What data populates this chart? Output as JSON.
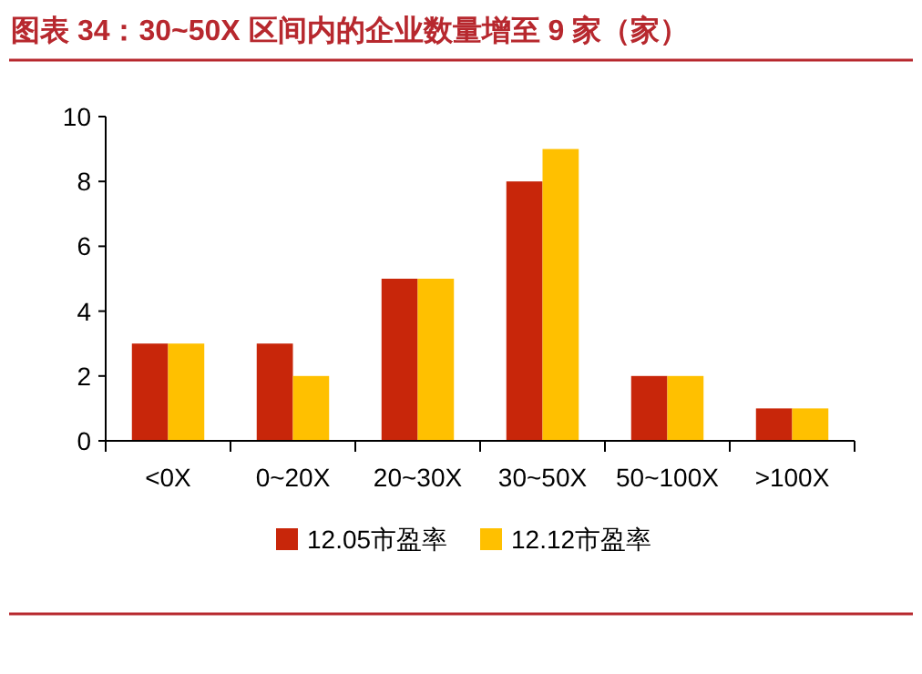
{
  "chart_data": {
    "type": "bar",
    "title": "图表 34：30~50X 区间内的企业数量增至 9 家（家）",
    "categories": [
      "<0X",
      "0~20X",
      "20~30X",
      "30~50X",
      "50~100X",
      ">100X"
    ],
    "series": [
      {
        "name": "12.05市盈率",
        "color": "#c8260a",
        "values": [
          3,
          3,
          5,
          8,
          2,
          1
        ]
      },
      {
        "name": "12.12市盈率",
        "color": "#ffc000",
        "values": [
          3,
          2,
          5,
          9,
          2,
          1
        ]
      }
    ],
    "ylim": [
      0,
      10
    ],
    "yticks": [
      0,
      2,
      4,
      6,
      8,
      10
    ],
    "grid": false,
    "legend": "bottom"
  }
}
